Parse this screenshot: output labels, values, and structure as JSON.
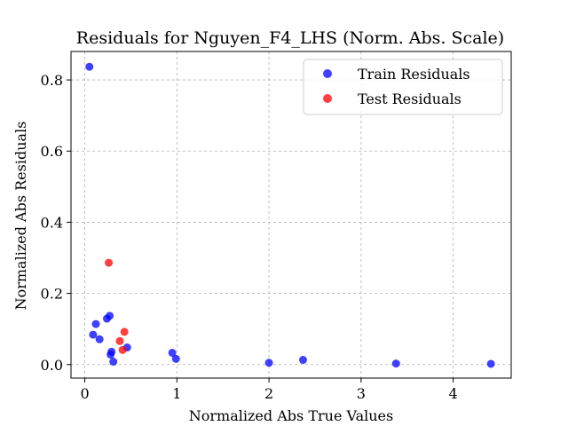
{
  "chart_data": {
    "type": "scatter",
    "title": "Residuals for Nguyen_F4_LHS (Norm. Abs. Scale)",
    "xlabel": "Normalized Abs True Values",
    "ylabel": "Normalized Abs Residuals",
    "xlim": [
      -0.15,
      4.63
    ],
    "ylim": [
      -0.038,
      0.88
    ],
    "xticks": [
      0,
      1,
      2,
      3,
      4
    ],
    "xtick_labels": [
      "0",
      "1",
      "2",
      "3",
      "4"
    ],
    "yticks": [
      0.0,
      0.2,
      0.4,
      0.6,
      0.8
    ],
    "ytick_labels": [
      "0.0",
      "0.2",
      "0.4",
      "0.6",
      "0.8"
    ],
    "grid": true,
    "legend_position": "top-right",
    "series": [
      {
        "name": "Train Residuals",
        "color": "#0000ff",
        "points": [
          [
            0.05,
            0.837
          ],
          [
            0.09,
            0.084
          ],
          [
            0.12,
            0.114
          ],
          [
            0.16,
            0.071
          ],
          [
            0.24,
            0.129
          ],
          [
            0.27,
            0.137
          ],
          [
            0.28,
            0.028
          ],
          [
            0.29,
            0.036
          ],
          [
            0.31,
            0.008
          ],
          [
            0.46,
            0.048
          ],
          [
            0.95,
            0.033
          ],
          [
            0.99,
            0.016
          ],
          [
            2.0,
            0.005
          ],
          [
            2.37,
            0.013
          ],
          [
            3.38,
            0.003
          ],
          [
            4.41,
            0.002
          ]
        ]
      },
      {
        "name": "Test Residuals",
        "color": "#ff0000",
        "points": [
          [
            0.26,
            0.286
          ],
          [
            0.38,
            0.066
          ],
          [
            0.41,
            0.041
          ],
          [
            0.43,
            0.092
          ]
        ]
      }
    ]
  }
}
